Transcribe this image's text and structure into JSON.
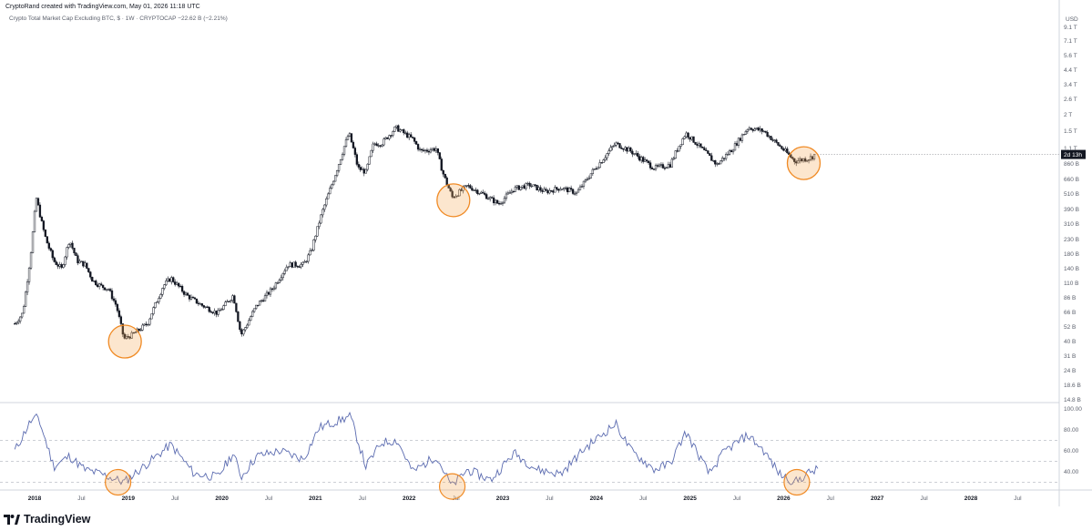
{
  "header": {
    "attribution": "CryptoRand created with TradingView.com, May 01, 2026 11:18 UTC"
  },
  "legend": {
    "symbol_text": "Crypto Total Market Cap Excluding BTC, $ · 1W · CRYPTOCAP",
    "change_text": "−22.62 B (−2.21%)"
  },
  "price_axis": {
    "currency": "USD",
    "countdown_label": "2d 13h",
    "tick_labels": [
      "9.1 T",
      "7.1 T",
      "5.6 T",
      "4.4 T",
      "3.4 T",
      "2.6 T",
      "2 T",
      "1.5 T",
      "1.1 T",
      "860 B",
      "660 B",
      "510 B",
      "390 B",
      "310 B",
      "230 B",
      "180 B",
      "140 B",
      "110 B",
      "86 B",
      "66 B",
      "52 B",
      "40 B",
      "31 B",
      "24 B",
      "18.6 B",
      "14.8 B"
    ]
  },
  "rsi_axis": {
    "tick_labels": [
      "100.00",
      "80.00",
      "60.00",
      "40.00"
    ]
  },
  "time_axis": {
    "labels": [
      {
        "text": "2018",
        "year": true
      },
      {
        "text": "Jul",
        "year": false
      },
      {
        "text": "2019",
        "year": true
      },
      {
        "text": "Jul",
        "year": false
      },
      {
        "text": "2020",
        "year": true
      },
      {
        "text": "Jul",
        "year": false
      },
      {
        "text": "2021",
        "year": true
      },
      {
        "text": "Jul",
        "year": false
      },
      {
        "text": "2022",
        "year": true
      },
      {
        "text": "Jul",
        "year": false
      },
      {
        "text": "2023",
        "year": true
      },
      {
        "text": "Jul",
        "year": false
      },
      {
        "text": "2024",
        "year": true
      },
      {
        "text": "Jul",
        "year": false
      },
      {
        "text": "2025",
        "year": true
      },
      {
        "text": "Jul",
        "year": false
      },
      {
        "text": "2026",
        "year": true
      },
      {
        "text": "Jul",
        "year": false
      },
      {
        "text": "2027",
        "year": true
      },
      {
        "text": "Jul",
        "year": false
      },
      {
        "text": "2028",
        "year": true
      },
      {
        "text": "Jul",
        "year": false
      }
    ]
  },
  "footer": {
    "brand": "TradingView"
  },
  "colors": {
    "candle": "#131722",
    "rsi_line": "#5b6bb0",
    "highlight_circle": "#f08a24",
    "highlight_fill": "rgba(245,166,80,0.28)",
    "grid_dash": "#9aa0ab"
  },
  "chart_data": {
    "type": "candlestick",
    "title": "Crypto Total Market Cap Excluding BTC, $ · 1W · CRYPTOCAP",
    "interval": "1W",
    "y_scale": "log",
    "ylim": [
      "14.8 B",
      "9.1 T"
    ],
    "price_points": [
      {
        "date": "2017-10",
        "value_b": 55
      },
      {
        "date": "2017-11",
        "value_b": 65
      },
      {
        "date": "2017-12",
        "value_b": 170
      },
      {
        "date": "2018-01-07",
        "value_b": 480
      },
      {
        "date": "2018-02",
        "value_b": 230
      },
      {
        "date": "2018-03",
        "value_b": 160
      },
      {
        "date": "2018-04",
        "value_b": 140
      },
      {
        "date": "2018-05",
        "value_b": 230
      },
      {
        "date": "2018-06",
        "value_b": 160
      },
      {
        "date": "2018-07",
        "value_b": 150
      },
      {
        "date": "2018-08",
        "value_b": 115
      },
      {
        "date": "2018-09",
        "value_b": 105
      },
      {
        "date": "2018-10",
        "value_b": 100
      },
      {
        "date": "2018-11",
        "value_b": 75
      },
      {
        "date": "2018-12-15",
        "value_b": 42
      },
      {
        "date": "2019-01",
        "value_b": 45
      },
      {
        "date": "2019-03",
        "value_b": 55
      },
      {
        "date": "2019-05",
        "value_b": 105
      },
      {
        "date": "2019-06",
        "value_b": 120
      },
      {
        "date": "2019-08",
        "value_b": 90
      },
      {
        "date": "2019-10",
        "value_b": 75
      },
      {
        "date": "2019-12",
        "value_b": 65
      },
      {
        "date": "2020-02",
        "value_b": 90
      },
      {
        "date": "2020-03-15",
        "value_b": 45
      },
      {
        "date": "2020-05",
        "value_b": 75
      },
      {
        "date": "2020-07",
        "value_b": 100
      },
      {
        "date": "2020-09",
        "value_b": 150
      },
      {
        "date": "2020-11",
        "value_b": 150
      },
      {
        "date": "2020-12",
        "value_b": 190
      },
      {
        "date": "2021-01",
        "value_b": 320
      },
      {
        "date": "2021-03",
        "value_b": 700
      },
      {
        "date": "2021-05-10",
        "value_b": 1450
      },
      {
        "date": "2021-06",
        "value_b": 800
      },
      {
        "date": "2021-07",
        "value_b": 750
      },
      {
        "date": "2021-08",
        "value_b": 1200
      },
      {
        "date": "2021-09",
        "value_b": 1200
      },
      {
        "date": "2021-11-10",
        "value_b": 1600
      },
      {
        "date": "2022-01",
        "value_b": 1300
      },
      {
        "date": "2022-02",
        "value_b": 1050
      },
      {
        "date": "2022-04",
        "value_b": 1100
      },
      {
        "date": "2022-05",
        "value_b": 700
      },
      {
        "date": "2022-06-18",
        "value_b": 480
      },
      {
        "date": "2022-08",
        "value_b": 590
      },
      {
        "date": "2022-10",
        "value_b": 510
      },
      {
        "date": "2022-12",
        "value_b": 430
      },
      {
        "date": "2023-02",
        "value_b": 560
      },
      {
        "date": "2023-04",
        "value_b": 600
      },
      {
        "date": "2023-06",
        "value_b": 530
      },
      {
        "date": "2023-08",
        "value_b": 570
      },
      {
        "date": "2023-10",
        "value_b": 520
      },
      {
        "date": "2023-12",
        "value_b": 750
      },
      {
        "date": "2024-03",
        "value_b": 1200
      },
      {
        "date": "2024-05",
        "value_b": 1050
      },
      {
        "date": "2024-08",
        "value_b": 800
      },
      {
        "date": "2024-10",
        "value_b": 850
      },
      {
        "date": "2024-12",
        "value_b": 1450
      },
      {
        "date": "2025-02",
        "value_b": 1100
      },
      {
        "date": "2025-04",
        "value_b": 850
      },
      {
        "date": "2025-06",
        "value_b": 1100
      },
      {
        "date": "2025-08",
        "value_b": 1600
      },
      {
        "date": "2025-10",
        "value_b": 1500
      },
      {
        "date": "2025-12",
        "value_b": 1150
      },
      {
        "date": "2026-02",
        "value_b": 900
      },
      {
        "date": "2026-04",
        "value_b": 950
      },
      {
        "date": "2026-05-01",
        "value_b": 1000
      }
    ],
    "indicator": {
      "name": "RSI",
      "ylim": [
        20,
        100
      ],
      "reference_levels": [
        70,
        50,
        30
      ],
      "points": [
        {
          "date": "2017-10",
          "value": 60
        },
        {
          "date": "2017-12",
          "value": 88
        },
        {
          "date": "2018-01",
          "value": 92
        },
        {
          "date": "2018-03",
          "value": 45
        },
        {
          "date": "2018-05",
          "value": 55
        },
        {
          "date": "2018-07",
          "value": 42
        },
        {
          "date": "2018-09",
          "value": 38
        },
        {
          "date": "2018-12",
          "value": 30
        },
        {
          "date": "2019-03",
          "value": 48
        },
        {
          "date": "2019-06",
          "value": 66
        },
        {
          "date": "2019-09",
          "value": 38
        },
        {
          "date": "2019-12",
          "value": 35
        },
        {
          "date": "2020-02",
          "value": 58
        },
        {
          "date": "2020-03",
          "value": 35
        },
        {
          "date": "2020-05",
          "value": 55
        },
        {
          "date": "2020-08",
          "value": 60
        },
        {
          "date": "2020-11",
          "value": 52
        },
        {
          "date": "2021-01",
          "value": 82
        },
        {
          "date": "2021-05",
          "value": 93
        },
        {
          "date": "2021-07",
          "value": 45
        },
        {
          "date": "2021-09",
          "value": 68
        },
        {
          "date": "2021-11",
          "value": 70
        },
        {
          "date": "2022-01",
          "value": 40
        },
        {
          "date": "2022-04",
          "value": 55
        },
        {
          "date": "2022-06",
          "value": 26
        },
        {
          "date": "2022-08",
          "value": 42
        },
        {
          "date": "2022-11",
          "value": 32
        },
        {
          "date": "2023-02",
          "value": 58
        },
        {
          "date": "2023-05",
          "value": 42
        },
        {
          "date": "2023-08",
          "value": 38
        },
        {
          "date": "2023-11",
          "value": 62
        },
        {
          "date": "2024-03",
          "value": 86
        },
        {
          "date": "2024-05",
          "value": 60
        },
        {
          "date": "2024-08",
          "value": 42
        },
        {
          "date": "2024-10",
          "value": 48
        },
        {
          "date": "2024-12",
          "value": 78
        },
        {
          "date": "2025-03",
          "value": 38
        },
        {
          "date": "2025-05",
          "value": 60
        },
        {
          "date": "2025-08",
          "value": 75
        },
        {
          "date": "2025-10",
          "value": 60
        },
        {
          "date": "2025-12",
          "value": 38
        },
        {
          "date": "2026-02",
          "value": 30
        },
        {
          "date": "2026-04",
          "value": 40
        },
        {
          "date": "2026-05",
          "value": 42
        }
      ]
    },
    "highlighted_lows": [
      "2018-12",
      "2022-06",
      "2026-03"
    ]
  }
}
